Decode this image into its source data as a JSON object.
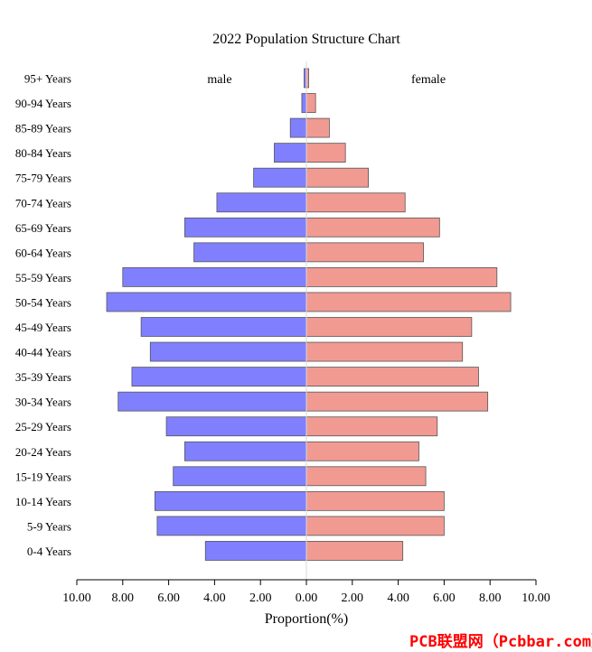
{
  "chart_data": {
    "type": "bar",
    "orientation": "horizontal-diverging",
    "title": "2022 Population Structure Chart",
    "xlabel": "Proportion(%)",
    "ylabel": "",
    "xlim": [
      -10,
      10
    ],
    "x_ticks": [
      "10.00",
      "8.00",
      "6.00",
      "4.00",
      "2.00",
      "0.00",
      "2.00",
      "4.00",
      "6.00",
      "8.00",
      "10.00"
    ],
    "categories": [
      "0-4 Years",
      "5-9 Years",
      "10-14 Years",
      "15-19 Years",
      "20-24 Years",
      "25-29 Years",
      "30-34 Years",
      "35-39 Years",
      "40-44 Years",
      "45-49 Years",
      "50-54 Years",
      "55-59 Years",
      "60-64 Years",
      "65-69 Years",
      "70-74 Years",
      "75-79 Years",
      "80-84 Years",
      "85-89 Years",
      "90-94 Years",
      "95+ Years"
    ],
    "series": [
      {
        "name": "male",
        "color": "#8080ff",
        "side": "left",
        "values": [
          4.4,
          6.5,
          6.6,
          5.8,
          5.3,
          6.1,
          8.2,
          7.6,
          6.8,
          7.2,
          8.7,
          8.0,
          4.9,
          5.3,
          3.9,
          2.3,
          1.4,
          0.7,
          0.2,
          0.1
        ]
      },
      {
        "name": "female",
        "color": "#f19a92",
        "side": "right",
        "values": [
          4.2,
          6.0,
          6.0,
          5.2,
          4.9,
          5.7,
          7.9,
          7.5,
          6.8,
          7.2,
          8.9,
          8.3,
          5.1,
          5.8,
          4.3,
          2.7,
          1.7,
          1.0,
          0.4,
          0.1
        ]
      }
    ],
    "grid": false,
    "legend": "none"
  },
  "watermark": "PCB联盟网（Pcbbar.com）"
}
